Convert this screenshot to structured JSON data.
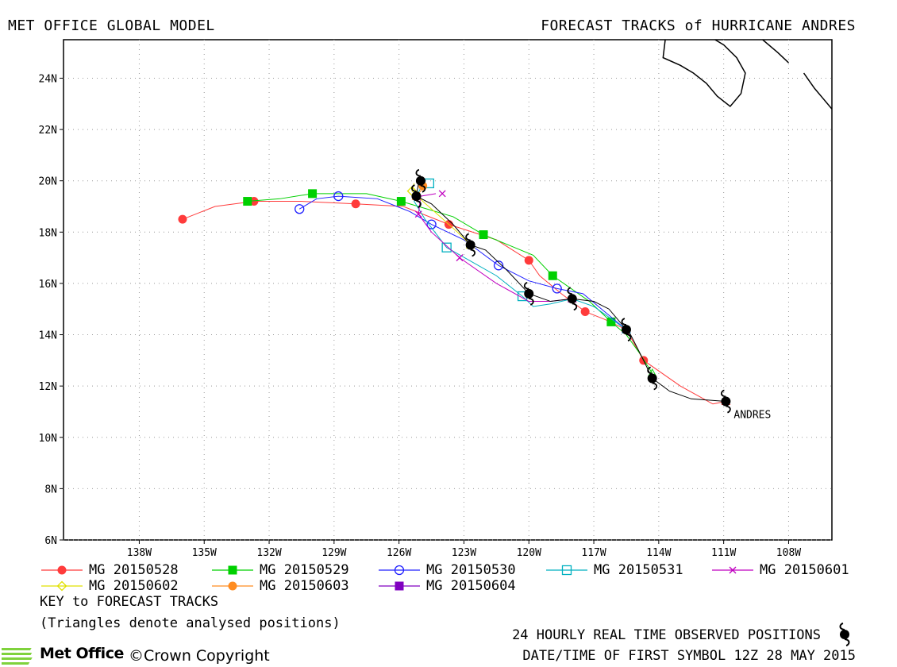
{
  "header": {
    "left_title": "MET OFFICE GLOBAL MODEL",
    "right_title": "FORECAST TRACKS of HURRICANE ANDRES"
  },
  "map": {
    "lon_range": [
      -141.5,
      -106
    ],
    "lat_range": [
      6,
      25.5
    ],
    "lon_ticks": [
      {
        "value": -138,
        "label": "138W"
      },
      {
        "value": -135,
        "label": "135W"
      },
      {
        "value": -132,
        "label": "132W"
      },
      {
        "value": -129,
        "label": "129W"
      },
      {
        "value": -126,
        "label": "126W"
      },
      {
        "value": -123,
        "label": "123W"
      },
      {
        "value": -120,
        "label": "120W"
      },
      {
        "value": -117,
        "label": "117W"
      },
      {
        "value": -114,
        "label": "114W"
      },
      {
        "value": -111,
        "label": "111W"
      },
      {
        "value": -108,
        "label": "108W"
      }
    ],
    "lat_ticks": [
      {
        "value": 6,
        "label": "6N"
      },
      {
        "value": 8,
        "label": "8N"
      },
      {
        "value": 10,
        "label": "10N"
      },
      {
        "value": 12,
        "label": "12N"
      },
      {
        "value": 14,
        "label": "14N"
      },
      {
        "value": 16,
        "label": "16N"
      },
      {
        "value": 18,
        "label": "18N"
      },
      {
        "value": 20,
        "label": "20N"
      },
      {
        "value": 22,
        "label": "22N"
      },
      {
        "value": 24,
        "label": "24N"
      }
    ],
    "grid": "dotted",
    "storm_label": "ANDRES",
    "observed_track": [
      [
        -110.9,
        11.4
      ],
      [
        -112.5,
        11.5
      ],
      [
        -113.5,
        11.8
      ],
      [
        -114.3,
        12.3
      ],
      [
        -114.7,
        13.0
      ],
      [
        -115.3,
        14.0
      ],
      [
        -115.5,
        14.2
      ],
      [
        -116.3,
        15.0
      ],
      [
        -117.0,
        15.3
      ],
      [
        -118.0,
        15.4
      ],
      [
        -119.0,
        15.3
      ],
      [
        -120.0,
        15.6
      ],
      [
        -121.0,
        16.5
      ],
      [
        -122.0,
        17.3
      ],
      [
        -122.7,
        17.5
      ],
      [
        -123.5,
        18.3
      ],
      [
        -124.5,
        19.1
      ],
      [
        -125.2,
        19.4
      ],
      [
        -125.1,
        19.9
      ]
    ],
    "observed_positions": [
      [
        -110.9,
        11.4
      ],
      [
        -114.3,
        12.3
      ],
      [
        -115.5,
        14.2
      ],
      [
        -118.0,
        15.4
      ],
      [
        -120.0,
        15.6
      ],
      [
        -122.7,
        17.5
      ],
      [
        -125.2,
        19.4
      ],
      [
        -125.0,
        20.0
      ]
    ],
    "coastline": [
      [
        [
          -113.7,
          25.5
        ],
        [
          -113.8,
          24.8
        ],
        [
          -113.0,
          24.5
        ],
        [
          -112.4,
          24.2
        ],
        [
          -111.8,
          23.8
        ],
        [
          -111.3,
          23.3
        ],
        [
          -110.7,
          22.9
        ],
        [
          -110.2,
          23.4
        ],
        [
          -110.0,
          24.2
        ],
        [
          -110.4,
          24.8
        ],
        [
          -111.0,
          25.3
        ],
        [
          -111.4,
          25.5
        ]
      ],
      [
        [
          -109.2,
          25.5
        ],
        [
          -108.5,
          25.0
        ],
        [
          -108.0,
          24.6
        ]
      ],
      [
        [
          -107.3,
          24.2
        ],
        [
          -106.8,
          23.6
        ],
        [
          -106.4,
          23.2
        ],
        [
          -106.0,
          22.8
        ]
      ]
    ],
    "tracks": [
      {
        "name": "MG 20150528",
        "color": "#ff3b3b",
        "marker": "filled-circle",
        "points": [
          [
            -110.9,
            11.4
          ],
          [
            -111.5,
            11.3
          ],
          [
            -113.0,
            12.0
          ],
          [
            -114.7,
            13.0
          ],
          [
            -115.5,
            14.2
          ],
          [
            -116.5,
            14.6
          ],
          [
            -117.4,
            14.9
          ],
          [
            -118.5,
            15.6
          ],
          [
            -119.5,
            16.3
          ],
          [
            -120.0,
            16.9
          ],
          [
            -121.5,
            17.7
          ],
          [
            -123.7,
            18.3
          ],
          [
            -125.8,
            19.0
          ],
          [
            -128.0,
            19.1
          ],
          [
            -130.5,
            19.2
          ],
          [
            -132.7,
            19.2
          ],
          [
            -134.5,
            19.0
          ],
          [
            -136.0,
            18.5
          ]
        ],
        "marked": [
          [
            -114.7,
            13.0
          ],
          [
            -117.4,
            14.9
          ],
          [
            -120.0,
            16.9
          ],
          [
            -123.7,
            18.3
          ],
          [
            -128.0,
            19.1
          ],
          [
            -132.7,
            19.2
          ],
          [
            -136.0,
            18.5
          ]
        ]
      },
      {
        "name": "MG 20150529",
        "color": "#00d000",
        "marker": "filled-square",
        "points": [
          [
            -114.3,
            12.5
          ],
          [
            -114.9,
            13.3
          ],
          [
            -115.5,
            14.0
          ],
          [
            -116.2,
            14.5
          ],
          [
            -117.2,
            15.3
          ],
          [
            -118.9,
            16.3
          ],
          [
            -119.8,
            17.1
          ],
          [
            -122.1,
            17.9
          ],
          [
            -123.5,
            18.6
          ],
          [
            -125.9,
            19.2
          ],
          [
            -127.5,
            19.5
          ],
          [
            -130.0,
            19.5
          ],
          [
            -131.5,
            19.3
          ],
          [
            -133.0,
            19.2
          ]
        ],
        "marked": [
          [
            -116.2,
            14.5
          ],
          [
            -118.9,
            16.3
          ],
          [
            -122.1,
            17.9
          ],
          [
            -125.9,
            19.2
          ],
          [
            -130.0,
            19.5
          ],
          [
            -133.0,
            19.2
          ]
        ]
      },
      {
        "name": "MG 20150530",
        "color": "#2020ff",
        "marker": "open-circle",
        "points": [
          [
            -115.5,
            14.2
          ],
          [
            -116.5,
            14.9
          ],
          [
            -117.5,
            15.6
          ],
          [
            -118.7,
            15.8
          ],
          [
            -120.0,
            16.1
          ],
          [
            -121.4,
            16.7
          ],
          [
            -123.0,
            17.7
          ],
          [
            -124.5,
            18.3
          ],
          [
            -125.5,
            18.8
          ],
          [
            -127.0,
            19.3
          ],
          [
            -128.8,
            19.4
          ],
          [
            -129.8,
            19.3
          ],
          [
            -130.6,
            18.9
          ]
        ],
        "marked": [
          [
            -118.7,
            15.8
          ],
          [
            -121.4,
            16.7
          ],
          [
            -124.5,
            18.3
          ],
          [
            -128.8,
            19.4
          ],
          [
            -130.6,
            18.9
          ]
        ]
      },
      {
        "name": "MG 20150531",
        "color": "#00b0c0",
        "marker": "open-square",
        "points": [
          [
            -115.5,
            14.2
          ],
          [
            -116.0,
            14.5
          ],
          [
            -117.0,
            15.1
          ],
          [
            -118.0,
            15.4
          ],
          [
            -119.0,
            15.2
          ],
          [
            -119.8,
            15.1
          ],
          [
            -120.3,
            15.5
          ],
          [
            -121.5,
            16.3
          ],
          [
            -123.8,
            17.4
          ],
          [
            -124.8,
            18.5
          ],
          [
            -125.3,
            19.2
          ],
          [
            -124.9,
            19.9
          ]
        ],
        "marked": [
          [
            -120.3,
            15.5
          ],
          [
            -123.8,
            17.4
          ],
          [
            -124.6,
            19.9
          ]
        ]
      },
      {
        "name": "MG 20150601",
        "color": "#c000c0",
        "marker": "x",
        "points": [
          [
            -118.0,
            15.4
          ],
          [
            -119.0,
            15.3
          ],
          [
            -120.0,
            15.3
          ],
          [
            -121.5,
            16.0
          ],
          [
            -123.2,
            17.0
          ],
          [
            -124.5,
            18.0
          ],
          [
            -125.1,
            18.7
          ],
          [
            -125.0,
            19.4
          ],
          [
            -124.3,
            19.5
          ]
        ],
        "marked": [
          [
            -123.2,
            17.0
          ],
          [
            -125.1,
            18.7
          ],
          [
            -124.0,
            19.5
          ]
        ]
      },
      {
        "name": "MG 20150602",
        "color": "#e0e000",
        "marker": "open-diamond",
        "points": [
          [
            -122.7,
            17.5
          ],
          [
            -123.3,
            18.0
          ],
          [
            -124.1,
            18.6
          ],
          [
            -124.9,
            19.2
          ],
          [
            -125.4,
            19.6
          ],
          [
            -125.3,
            19.9
          ]
        ],
        "marked": [
          [
            -125.4,
            19.6
          ]
        ]
      },
      {
        "name": "MG 20150603",
        "color": "#ff8c20",
        "marker": "filled-circle",
        "points": [
          [
            -125.2,
            19.4
          ],
          [
            -125.0,
            19.6
          ],
          [
            -124.9,
            19.8
          ]
        ],
        "marked": [
          [
            -124.9,
            19.8
          ]
        ]
      },
      {
        "name": "MG 20150604",
        "color": "#8000c0",
        "marker": "filled-square",
        "points": [],
        "marked": []
      }
    ]
  },
  "legend": {
    "note_title": "KEY to FORECAST TRACKS",
    "note_triangles": "(Triangles denote analysed positions)"
  },
  "footer": {
    "observed_label": "24 HOURLY REAL TIME OBSERVED POSITIONS",
    "first_symbol": "DATE/TIME OF FIRST SYMBOL 12Z 28 MAY 2015",
    "brand": "Met Office",
    "copyright": "©Crown Copyright"
  }
}
